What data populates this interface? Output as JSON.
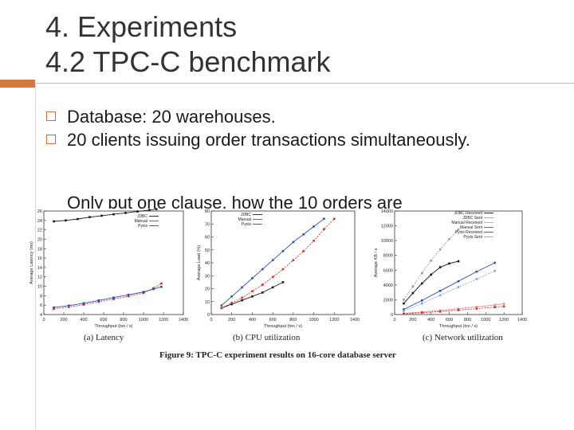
{
  "slide": {
    "title_line1": "4. Experiments",
    "title_line2": "4.2 TPC-C benchmark",
    "bullets": [
      "Database: 20 warehouses.",
      "20 clients issuing order transactions simultaneously."
    ],
    "partial_bullet": "Only put one clause, how the 10 orders are"
  },
  "figure": {
    "caption": "Figure 9: TPC-C experiment results on 16-core database server"
  },
  "chart_data": [
    {
      "type": "line",
      "subtitle": "(a) Latency",
      "xlabel": "Throughput (txn / s)",
      "ylabel": "Average Latency (ms)",
      "xlim": [
        0,
        1400
      ],
      "ylim": [
        4,
        26
      ],
      "xticks": [
        "0",
        "200",
        "400",
        "600",
        "800",
        "1000",
        "1200",
        "1400"
      ],
      "yticks": [
        "4",
        "6",
        "8",
        "10",
        "12",
        "14",
        "16",
        "18",
        "20",
        "22",
        "24",
        "26"
      ],
      "legend": "top-right",
      "grid": false,
      "series": [
        {
          "name": "JDBC",
          "color": "#1a1a1a",
          "x": [
            100,
            220,
            340,
            460,
            580,
            700,
            820,
            940,
            1060,
            1130
          ],
          "y": [
            23.8,
            24.0,
            24.3,
            24.7,
            25.0,
            25.3,
            25.6,
            25.9,
            26.2,
            26.4
          ]
        },
        {
          "name": "Manual",
          "color": "#d03030",
          "x": [
            100,
            250,
            400,
            550,
            700,
            850,
            1000,
            1100,
            1180
          ],
          "y": [
            5.2,
            5.6,
            6.1,
            6.7,
            7.3,
            7.9,
            8.6,
            9.6,
            10.6
          ]
        },
        {
          "name": "Pyxis",
          "color": "#2a4fb0",
          "x": [
            100,
            250,
            400,
            550,
            700,
            850,
            1000,
            1100,
            1180
          ],
          "y": [
            5.5,
            5.9,
            6.4,
            7.0,
            7.6,
            8.2,
            8.8,
            9.4,
            9.9
          ]
        }
      ]
    },
    {
      "type": "line",
      "subtitle": "(b) CPU utilization",
      "xlabel": "Throughput (txn / s)",
      "ylabel": "Average Load (%)",
      "xlim": [
        0,
        1400
      ],
      "ylim": [
        0,
        80
      ],
      "xticks": [
        "0",
        "200",
        "400",
        "600",
        "800",
        "1000",
        "1200",
        "1400"
      ],
      "yticks": [
        "0",
        "10",
        "20",
        "30",
        "40",
        "50",
        "60",
        "70",
        "80"
      ],
      "legend": "top-left",
      "grid": false,
      "series": [
        {
          "name": "JDBC",
          "color": "#1a1a1a",
          "x": [
            100,
            200,
            300,
            400,
            500,
            600,
            700
          ],
          "y": [
            5,
            8,
            11,
            14,
            17,
            21,
            25
          ]
        },
        {
          "name": "Manual",
          "color": "#d03030",
          "x": [
            100,
            200,
            300,
            400,
            500,
            600,
            700,
            800,
            900,
            1000,
            1100,
            1200
          ],
          "y": [
            5,
            9,
            13,
            18,
            23,
            29,
            35,
            42,
            49,
            57,
            66,
            74
          ]
        },
        {
          "name": "Pyxis",
          "color": "#2a4fb0",
          "x": [
            100,
            200,
            300,
            400,
            500,
            600,
            700,
            800,
            900,
            1000,
            1100
          ],
          "y": [
            7,
            14,
            21,
            28,
            35,
            42,
            49,
            56,
            62,
            68,
            74
          ]
        }
      ]
    },
    {
      "type": "line",
      "subtitle": "(c) Network utilization",
      "xlabel": "Throughput (txn / s)",
      "ylabel": "Average KB / s",
      "xlim": [
        0,
        1400
      ],
      "ylim": [
        0,
        14000
      ],
      "xticks": [
        "0",
        "200",
        "400",
        "600",
        "800",
        "1000",
        "1200",
        "1400"
      ],
      "yticks": [
        "0",
        "2000",
        "4000",
        "6000",
        "8000",
        "10000",
        "12000",
        "14000"
      ],
      "legend": "top-right",
      "grid": false,
      "series": [
        {
          "name": "JDBC Received",
          "color": "#111111",
          "x": [
            100,
            200,
            300,
            400,
            500,
            600,
            700
          ],
          "y": [
            1500,
            2900,
            4200,
            5400,
            6400,
            6900,
            7200
          ]
        },
        {
          "name": "JDBC Sent",
          "color": "#9a9a9a",
          "x": [
            100,
            200,
            300,
            400,
            500,
            600,
            700
          ],
          "y": [
            2000,
            3800,
            5600,
            7300,
            8800,
            10200,
            11500
          ]
        },
        {
          "name": "Manual Received",
          "color": "#e89090",
          "x": [
            100,
            300,
            500,
            700,
            900,
            1100,
            1200
          ],
          "y": [
            150,
            350,
            550,
            800,
            1050,
            1300,
            1450
          ]
        },
        {
          "name": "Manual Sent",
          "color": "#d03030",
          "x": [
            100,
            300,
            500,
            700,
            900,
            1100,
            1200
          ],
          "y": [
            100,
            250,
            400,
            600,
            800,
            1000,
            1100
          ]
        },
        {
          "name": "Pyxis Received",
          "color": "#2a4fb0",
          "x": [
            100,
            300,
            500,
            700,
            900,
            1100
          ],
          "y": [
            700,
            1900,
            3200,
            4500,
            5800,
            7000
          ]
        },
        {
          "name": "Pyxis Sent",
          "color": "#8aa0d8",
          "x": [
            100,
            300,
            500,
            700,
            900,
            1100
          ],
          "y": [
            500,
            1500,
            2600,
            3700,
            4800,
            5900
          ]
        }
      ]
    }
  ]
}
